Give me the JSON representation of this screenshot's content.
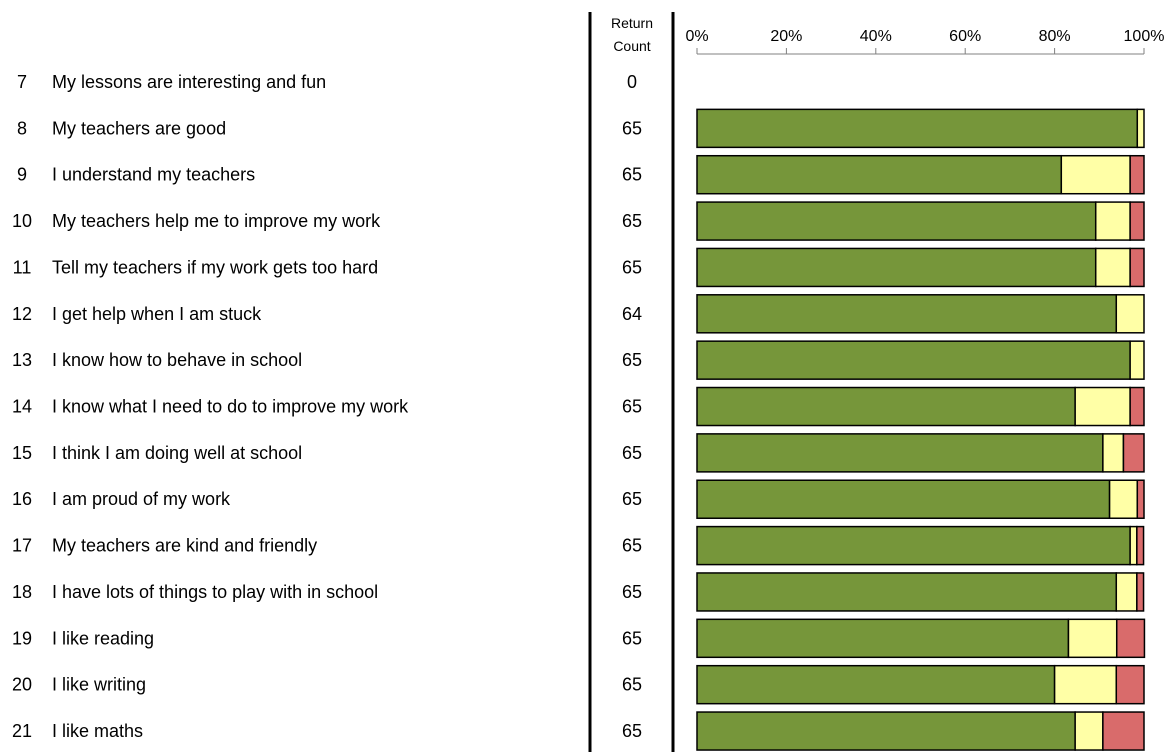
{
  "header": {
    "return_label_1": "Return",
    "return_label_2": "Count"
  },
  "chart_data": {
    "type": "bar",
    "stacked": true,
    "orientation": "horizontal",
    "x_ticks": [
      "0%",
      "20%",
      "40%",
      "60%",
      "80%",
      "100%"
    ],
    "xlim": [
      0,
      100
    ],
    "colors": [
      "#76963a",
      "#ffffa6",
      "#d96b6b"
    ],
    "rows": [
      {
        "num": "7",
        "question": "My lessons are interesting and fun",
        "count": "0",
        "values": [
          0,
          0,
          0
        ]
      },
      {
        "num": "8",
        "question": "My teachers are good",
        "count": "65",
        "values": [
          98.5,
          1.5,
          0
        ]
      },
      {
        "num": "9",
        "question": "I understand my teachers",
        "count": "65",
        "values": [
          81.5,
          15.4,
          3.1
        ]
      },
      {
        "num": "10",
        "question": "My teachers help me to improve my work",
        "count": "65",
        "values": [
          89.2,
          7.7,
          3.1
        ]
      },
      {
        "num": "11",
        "question": "Tell my teachers if my work gets too hard",
        "count": "65",
        "values": [
          89.2,
          7.7,
          3.1
        ]
      },
      {
        "num": "12",
        "question": "I get help when I am stuck",
        "count": "64",
        "values": [
          93.8,
          6.2,
          0
        ]
      },
      {
        "num": "13",
        "question": "I know how to behave in school",
        "count": "65",
        "values": [
          96.9,
          3.1,
          0
        ]
      },
      {
        "num": "14",
        "question": "I know what I need to do to improve my work",
        "count": "65",
        "values": [
          84.6,
          12.3,
          3.1
        ]
      },
      {
        "num": "15",
        "question": "I think I am doing well at school",
        "count": "65",
        "values": [
          90.8,
          4.6,
          4.6
        ]
      },
      {
        "num": "16",
        "question": "I am proud of my work",
        "count": "65",
        "values": [
          92.3,
          6.2,
          1.5
        ]
      },
      {
        "num": "17",
        "question": "My teachers are kind and friendly",
        "count": "65",
        "values": [
          96.9,
          1.5,
          1.5
        ]
      },
      {
        "num": "18",
        "question": "I have lots of things to play with in school",
        "count": "65",
        "values": [
          93.8,
          4.6,
          1.5
        ]
      },
      {
        "num": "19",
        "question": "I like reading",
        "count": "65",
        "values": [
          83.1,
          10.8,
          6.2
        ]
      },
      {
        "num": "20",
        "question": "I like writing",
        "count": "65",
        "values": [
          80.0,
          13.8,
          6.2
        ]
      },
      {
        "num": "21",
        "question": "I like maths",
        "count": "65",
        "values": [
          84.6,
          6.2,
          9.2
        ]
      }
    ]
  }
}
